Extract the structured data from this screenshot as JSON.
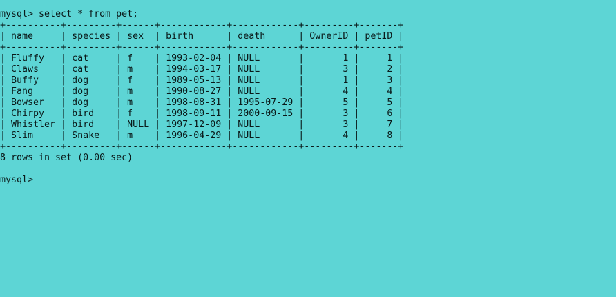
{
  "terminal": {
    "bg_color": "#5dd5d5",
    "text_color": "#0a1a1a",
    "prompt": "mysql> ",
    "command": "select * from pet;",
    "border_line": "+----------+---------+------+------------+------------+---------+-------+",
    "header_line": "| name     | species | sex  | birth      | death      | OwnerID | petID |",
    "columns": [
      "name",
      "species",
      "sex",
      "birth",
      "death",
      "OwnerID",
      "petID"
    ],
    "rows": [
      [
        "Fluffy",
        "cat",
        "f",
        "1993-02-04",
        "NULL",
        "1",
        "1"
      ],
      [
        "Claws",
        "cat",
        "m",
        "1994-03-17",
        "NULL",
        "3",
        "2"
      ],
      [
        "Buffy",
        "dog",
        "f",
        "1989-05-13",
        "NULL",
        "1",
        "3"
      ],
      [
        "Fang",
        "dog",
        "m",
        "1990-08-27",
        "NULL",
        "4",
        "4"
      ],
      [
        "Bowser",
        "dog",
        "m",
        "1998-08-31",
        "1995-07-29",
        "5",
        "5"
      ],
      [
        "Chirpy",
        "bird",
        "f",
        "1998-09-11",
        "2000-09-15",
        "3",
        "6"
      ],
      [
        "Whistler",
        "bird",
        "NULL",
        "1997-12-09",
        "NULL",
        "3",
        "7"
      ],
      [
        "Slim",
        "Snake",
        "m",
        "1996-04-29",
        "NULL",
        "4",
        "8"
      ]
    ],
    "row_lines": [
      "| Fluffy   | cat     | f    | 1993-02-04 | NULL       |       1 |     1 |",
      "| Claws    | cat     | m    | 1994-03-17 | NULL       |       3 |     2 |",
      "| Buffy    | dog     | f    | 1989-05-13 | NULL       |       1 |     3 |",
      "| Fang     | dog     | m    | 1990-08-27 | NULL       |       4 |     4 |",
      "| Bowser   | dog     | m    | 1998-08-31 | 1995-07-29 |       5 |     5 |",
      "| Chirpy   | bird    | f    | 1998-09-11 | 2000-09-15 |       3 |     6 |",
      "| Whistler | bird    | NULL | 1997-12-09 | NULL       |       3 |     7 |",
      "| Slim     | Snake   | m    | 1996-04-29 | NULL       |       4 |     8 |"
    ],
    "result_summary": "8 rows in set (0.00 sec)",
    "next_prompt": "mysql>"
  }
}
